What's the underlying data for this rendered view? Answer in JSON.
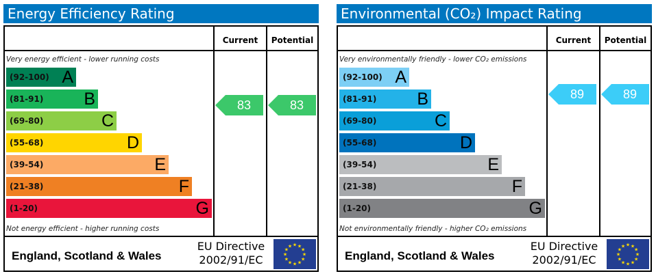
{
  "chart_data": [
    {
      "type": "bar",
      "title": "Energy Efficiency Rating",
      "columns": [
        "Current",
        "Potential"
      ],
      "top_note": "Very energy efficient - lower running costs",
      "bottom_note": "Not energy efficient - higher running costs",
      "bands": [
        {
          "range": "(92-100)",
          "letter": "A",
          "color": "#008054"
        },
        {
          "range": "(81-91)",
          "letter": "B",
          "color": "#19b459"
        },
        {
          "range": "(69-80)",
          "letter": "C",
          "color": "#8dce46"
        },
        {
          "range": "(55-68)",
          "letter": "D",
          "color": "#ffd500"
        },
        {
          "range": "(39-54)",
          "letter": "E",
          "color": "#fcaa65"
        },
        {
          "range": "(21-38)",
          "letter": "F",
          "color": "#ef8023"
        },
        {
          "range": "(1-20)",
          "letter": "G",
          "color": "#e9153b"
        }
      ],
      "current": {
        "value": 83,
        "band": "B",
        "color": "#3cc86a"
      },
      "potential": {
        "value": 83,
        "band": "B",
        "color": "#3cc86a"
      },
      "footer": {
        "region": "England, Scotland & Wales",
        "directive_line1": "EU Directive",
        "directive_line2": "2002/91/EC"
      }
    },
    {
      "type": "bar",
      "title": "Environmental (CO₂) Impact Rating",
      "columns": [
        "Current",
        "Potential"
      ],
      "top_note": "Very environmentally friendly - lower CO₂ emissions",
      "bottom_note": "Not environmentally friendly - higher CO₂ emissions",
      "bands": [
        {
          "range": "(92-100)",
          "letter": "A",
          "color": "#7dcff5"
        },
        {
          "range": "(81-91)",
          "letter": "B",
          "color": "#23b2e8"
        },
        {
          "range": "(69-80)",
          "letter": "C",
          "color": "#0a9fd9"
        },
        {
          "range": "(55-68)",
          "letter": "D",
          "color": "#0073bd"
        },
        {
          "range": "(39-54)",
          "letter": "E",
          "color": "#bbbdbf"
        },
        {
          "range": "(21-38)",
          "letter": "F",
          "color": "#a6a8ab"
        },
        {
          "range": "(1-20)",
          "letter": "G",
          "color": "#818285"
        }
      ],
      "current": {
        "value": 89,
        "band": "B",
        "color": "#3ccdf8"
      },
      "potential": {
        "value": 89,
        "band": "B",
        "color": "#3ccdf8"
      },
      "footer": {
        "region": "England, Scotland & Wales",
        "directive_line1": "EU Directive",
        "directive_line2": "2002/91/EC"
      }
    }
  ]
}
